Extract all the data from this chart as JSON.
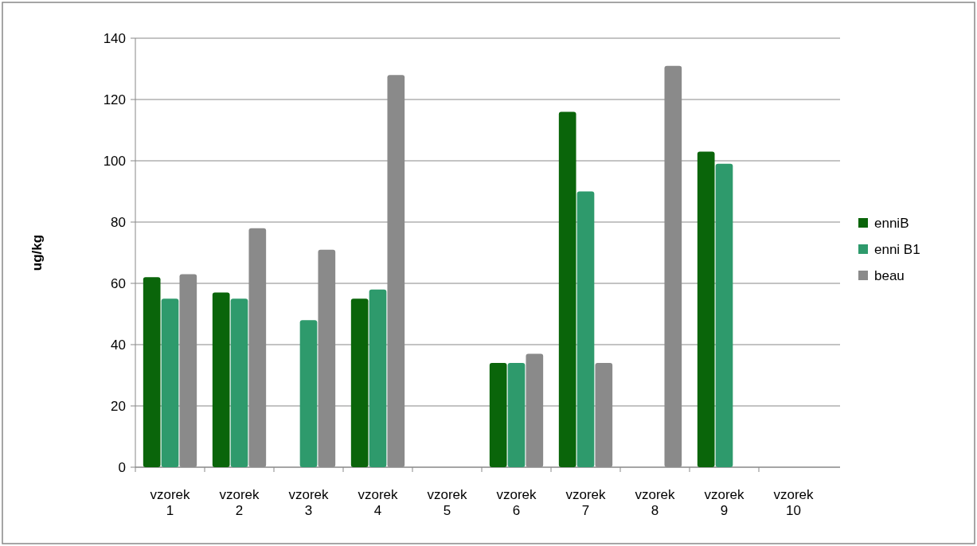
{
  "chart_data": {
    "type": "bar",
    "ylabel": "ug/kg",
    "categories": [
      "vzorek 1",
      "vzorek 2",
      "vzorek 3",
      "vzorek 4",
      "vzorek 5",
      "vzorek 6",
      "vzorek 7",
      "vzorek 8",
      "vzorek 9",
      "vzorek 10"
    ],
    "series": [
      {
        "name": "enniB",
        "color": "#0a650a",
        "values": [
          62,
          57,
          0,
          55,
          0,
          34,
          116,
          0,
          103,
          0
        ]
      },
      {
        "name": "enni B1",
        "color": "#2e9a6c",
        "values": [
          55,
          55,
          48,
          58,
          0,
          34,
          90,
          0,
          99,
          0
        ]
      },
      {
        "name": "beau",
        "color": "#8a8a8a",
        "values": [
          63,
          78,
          71,
          128,
          0,
          37,
          34,
          131,
          0,
          0
        ]
      }
    ],
    "ylim": [
      0,
      140
    ],
    "yticks": [
      0,
      20,
      40,
      60,
      80,
      100,
      120,
      140
    ],
    "grid": "y",
    "legend": "right"
  }
}
